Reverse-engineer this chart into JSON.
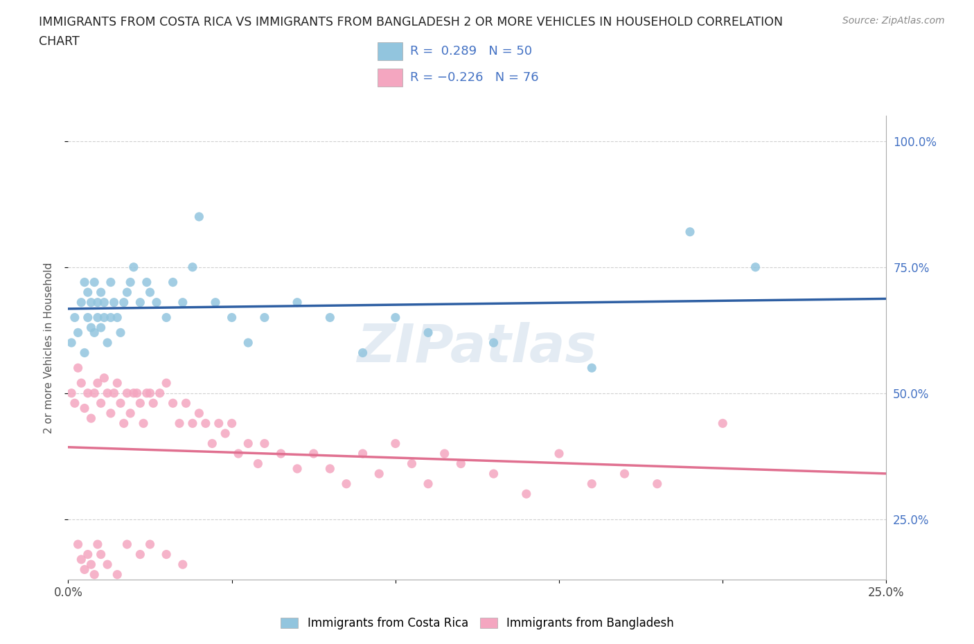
{
  "title_line1": "IMMIGRANTS FROM COSTA RICA VS IMMIGRANTS FROM BANGLADESH 2 OR MORE VEHICLES IN HOUSEHOLD CORRELATION",
  "title_line2": "CHART",
  "source": "Source: ZipAtlas.com",
  "ylabel": "2 or more Vehicles in Household",
  "watermark": "ZIPatlas",
  "xlim": [
    0.0,
    0.25
  ],
  "ylim": [
    0.13,
    1.05
  ],
  "legend1_label": "Immigrants from Costa Rica",
  "legend2_label": "Immigrants from Bangladesh",
  "R1": 0.289,
  "N1": 50,
  "R2": -0.226,
  "N2": 76,
  "color_blue": "#92c5de",
  "color_pink": "#f4a6c0",
  "color_blue_line": "#2e5fa3",
  "color_pink_line": "#e07090",
  "color_blue_text": "#4472c4",
  "color_right_blue": "#4472c4",
  "color_right_pink": "#e07090",
  "costa_rica_x": [
    0.001,
    0.002,
    0.003,
    0.004,
    0.005,
    0.005,
    0.006,
    0.006,
    0.007,
    0.007,
    0.008,
    0.008,
    0.009,
    0.009,
    0.01,
    0.01,
    0.011,
    0.011,
    0.012,
    0.013,
    0.013,
    0.014,
    0.015,
    0.016,
    0.017,
    0.018,
    0.019,
    0.02,
    0.022,
    0.024,
    0.025,
    0.027,
    0.03,
    0.032,
    0.035,
    0.038,
    0.04,
    0.045,
    0.05,
    0.055,
    0.06,
    0.07,
    0.08,
    0.09,
    0.1,
    0.11,
    0.13,
    0.16,
    0.19,
    0.21
  ],
  "costa_rica_y": [
    0.6,
    0.65,
    0.62,
    0.68,
    0.72,
    0.58,
    0.65,
    0.7,
    0.63,
    0.68,
    0.72,
    0.62,
    0.65,
    0.68,
    0.7,
    0.63,
    0.65,
    0.68,
    0.6,
    0.65,
    0.72,
    0.68,
    0.65,
    0.62,
    0.68,
    0.7,
    0.72,
    0.75,
    0.68,
    0.72,
    0.7,
    0.68,
    0.65,
    0.72,
    0.68,
    0.75,
    0.85,
    0.68,
    0.65,
    0.6,
    0.65,
    0.68,
    0.65,
    0.58,
    0.65,
    0.62,
    0.6,
    0.55,
    0.82,
    0.75
  ],
  "bangladesh_x": [
    0.001,
    0.002,
    0.003,
    0.004,
    0.005,
    0.006,
    0.007,
    0.008,
    0.009,
    0.01,
    0.011,
    0.012,
    0.013,
    0.014,
    0.015,
    0.016,
    0.017,
    0.018,
    0.019,
    0.02,
    0.021,
    0.022,
    0.023,
    0.024,
    0.025,
    0.026,
    0.028,
    0.03,
    0.032,
    0.034,
    0.036,
    0.038,
    0.04,
    0.042,
    0.044,
    0.046,
    0.048,
    0.05,
    0.052,
    0.055,
    0.058,
    0.06,
    0.065,
    0.07,
    0.075,
    0.08,
    0.085,
    0.09,
    0.095,
    0.1,
    0.105,
    0.11,
    0.115,
    0.12,
    0.13,
    0.14,
    0.15,
    0.16,
    0.17,
    0.18,
    0.003,
    0.004,
    0.005,
    0.006,
    0.007,
    0.008,
    0.009,
    0.01,
    0.012,
    0.015,
    0.018,
    0.022,
    0.025,
    0.03,
    0.035,
    0.2
  ],
  "bangladesh_y": [
    0.5,
    0.48,
    0.55,
    0.52,
    0.47,
    0.5,
    0.45,
    0.5,
    0.52,
    0.48,
    0.53,
    0.5,
    0.46,
    0.5,
    0.52,
    0.48,
    0.44,
    0.5,
    0.46,
    0.5,
    0.5,
    0.48,
    0.44,
    0.5,
    0.5,
    0.48,
    0.5,
    0.52,
    0.48,
    0.44,
    0.48,
    0.44,
    0.46,
    0.44,
    0.4,
    0.44,
    0.42,
    0.44,
    0.38,
    0.4,
    0.36,
    0.4,
    0.38,
    0.35,
    0.38,
    0.35,
    0.32,
    0.38,
    0.34,
    0.4,
    0.36,
    0.32,
    0.38,
    0.36,
    0.34,
    0.3,
    0.38,
    0.32,
    0.34,
    0.32,
    0.2,
    0.17,
    0.15,
    0.18,
    0.16,
    0.14,
    0.2,
    0.18,
    0.16,
    0.14,
    0.2,
    0.18,
    0.2,
    0.18,
    0.16,
    0.44
  ]
}
